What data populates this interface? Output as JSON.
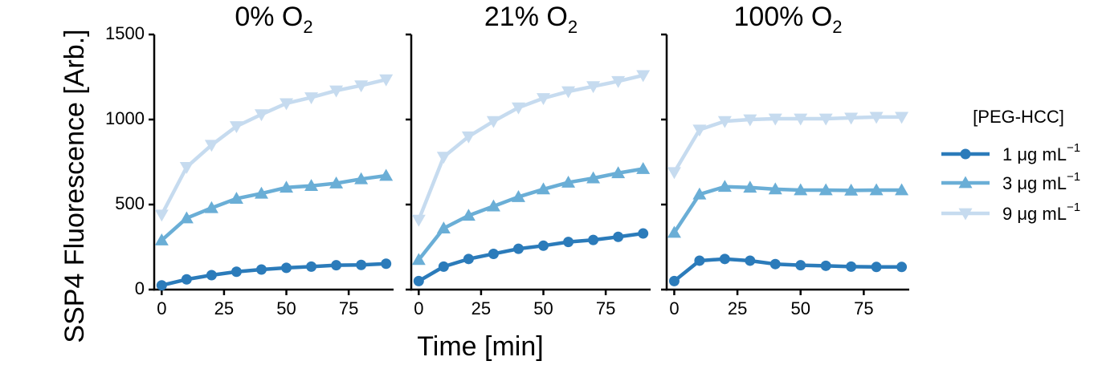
{
  "chart_data": {
    "type": "line",
    "ylabel": "SSP4 Fluorescence [Arb.]",
    "xlabel": "Time [min]",
    "ylim": [
      0,
      1500
    ],
    "yticks": [
      0,
      500,
      1000,
      1500
    ],
    "xlim": [
      -3,
      93
    ],
    "xticks": [
      0,
      25,
      50,
      75
    ],
    "x": [
      0,
      10,
      20,
      30,
      40,
      50,
      60,
      70,
      80,
      90
    ],
    "legend": {
      "title": "[PEG-HCC]",
      "placement": "right",
      "unit_base": "μg mL",
      "unit_exp": "−1"
    },
    "series_styles": [
      {
        "name": "1",
        "color": "#2b7bba",
        "marker": "circle"
      },
      {
        "name": "3",
        "color": "#6aaed6",
        "marker": "triangle-up"
      },
      {
        "name": "9",
        "color": "#c6dbef",
        "marker": "triangle-down"
      }
    ],
    "panels": [
      {
        "title_base": "0% O",
        "title_sub": "2",
        "series": [
          {
            "name": "1",
            "values": [
              25,
              60,
              85,
              105,
              118,
              128,
              135,
              143,
              145,
              152
            ]
          },
          {
            "name": "3",
            "values": [
              290,
              420,
              480,
              535,
              565,
              600,
              610,
              625,
              650,
              670
            ]
          },
          {
            "name": "9",
            "values": [
              440,
              720,
              850,
              960,
              1030,
              1095,
              1130,
              1170,
              1200,
              1235
            ]
          }
        ]
      },
      {
        "title_base": "21% O",
        "title_sub": "2",
        "series": [
          {
            "name": "1",
            "values": [
              50,
              135,
              180,
              210,
              240,
              258,
              280,
              292,
              310,
              330
            ]
          },
          {
            "name": "3",
            "values": [
              175,
              360,
              435,
              490,
              545,
              590,
              630,
              655,
              685,
              710
            ]
          },
          {
            "name": "9",
            "values": [
              410,
              780,
              900,
              990,
              1070,
              1125,
              1165,
              1195,
              1225,
              1260
            ]
          }
        ]
      },
      {
        "title_base": "100% O",
        "title_sub": "2",
        "series": [
          {
            "name": "1",
            "values": [
              50,
              170,
              180,
              170,
              150,
              143,
              140,
              135,
              133,
              133
            ]
          },
          {
            "name": "3",
            "values": [
              335,
              560,
              605,
              600,
              590,
              585,
              585,
              583,
              585,
              585
            ]
          },
          {
            "name": "9",
            "values": [
              690,
              940,
              990,
              1000,
              1005,
              1005,
              1005,
              1010,
              1015,
              1015
            ]
          }
        ]
      }
    ]
  }
}
